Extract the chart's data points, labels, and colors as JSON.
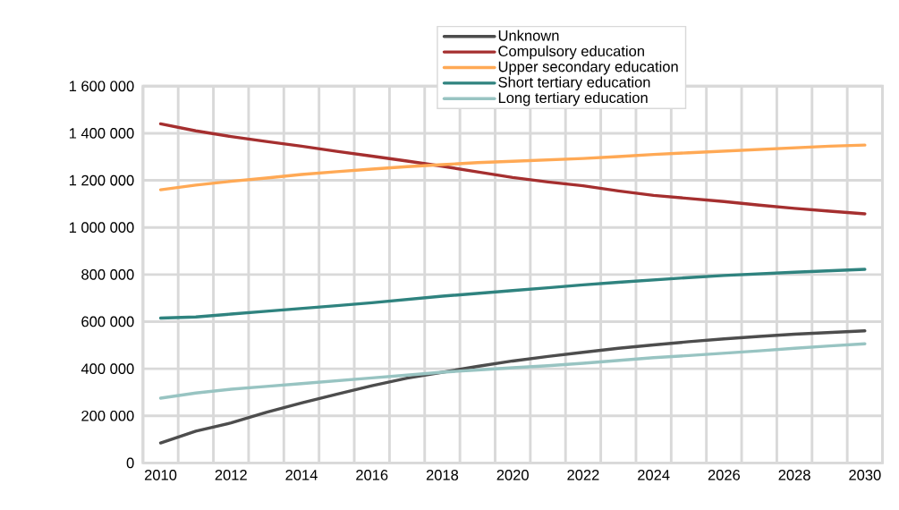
{
  "chart_data": {
    "type": "line",
    "categories": [
      "2010",
      null,
      "2012",
      null,
      "2014",
      null,
      "2016",
      null,
      "2018",
      null,
      "2020",
      null,
      "2022",
      null,
      "2024",
      null,
      "2026",
      null,
      "2028",
      null,
      "2030"
    ],
    "series": [
      {
        "name": "Unknown",
        "color": "#4d4d4d",
        "values": [
          85000,
          135000,
          170000,
          215000,
          255000,
          292000,
          328000,
          360000,
          385000,
          410000,
          433000,
          452000,
          470000,
          487000,
          501000,
          515000,
          527000,
          537000,
          547000,
          554000,
          561000
        ]
      },
      {
        "name": "Compulsory education",
        "color": "#a52f2f",
        "values": [
          1440000,
          1410000,
          1386000,
          1365000,
          1345000,
          1323000,
          1303000,
          1282000,
          1260000,
          1236000,
          1212000,
          1193000,
          1177000,
          1155000,
          1136000,
          1123000,
          1110000,
          1095000,
          1081000,
          1069000,
          1058000
        ]
      },
      {
        "name": "Upper secondary education",
        "color": "#ffa955",
        "values": [
          1160000,
          1180000,
          1196000,
          1210000,
          1225000,
          1237000,
          1248000,
          1258000,
          1267000,
          1275000,
          1281000,
          1287000,
          1293000,
          1301000,
          1310000,
          1317000,
          1324000,
          1331000,
          1338000,
          1345000,
          1350000
        ]
      },
      {
        "name": "Short tertiary education",
        "color": "#2f837f",
        "values": [
          615000,
          620000,
          632000,
          644000,
          656000,
          668000,
          680000,
          694000,
          708000,
          720000,
          732000,
          744000,
          756000,
          767000,
          777000,
          787000,
          796000,
          803000,
          810000,
          816000,
          822000
        ]
      },
      {
        "name": "Long tertiary education",
        "color": "#98c4c2",
        "values": [
          275000,
          297000,
          313000,
          325000,
          337000,
          349000,
          361000,
          373000,
          385000,
          395000,
          404000,
          413000,
          423000,
          435000,
          447000,
          456000,
          466000,
          476000,
          487000,
          497000,
          506000
        ]
      }
    ],
    "ylim": [
      0,
      1600000
    ],
    "yticks": [
      0,
      {
        "value": 200000,
        "label": "200 000"
      },
      {
        "value": 400000,
        "label": "400 000"
      },
      {
        "value": 600000,
        "label": "600 000"
      },
      {
        "value": 800000,
        "label": "800 000"
      },
      {
        "value": 1000000,
        "label": "1 000 000"
      },
      {
        "value": 1200000,
        "label": "1 200 000"
      },
      {
        "value": 1400000,
        "label": "1 400 000"
      },
      {
        "value": 1600000,
        "label": "1 600 000"
      }
    ],
    "grid": true,
    "legend": "top",
    "marker": "none",
    "line_style": "solid"
  }
}
